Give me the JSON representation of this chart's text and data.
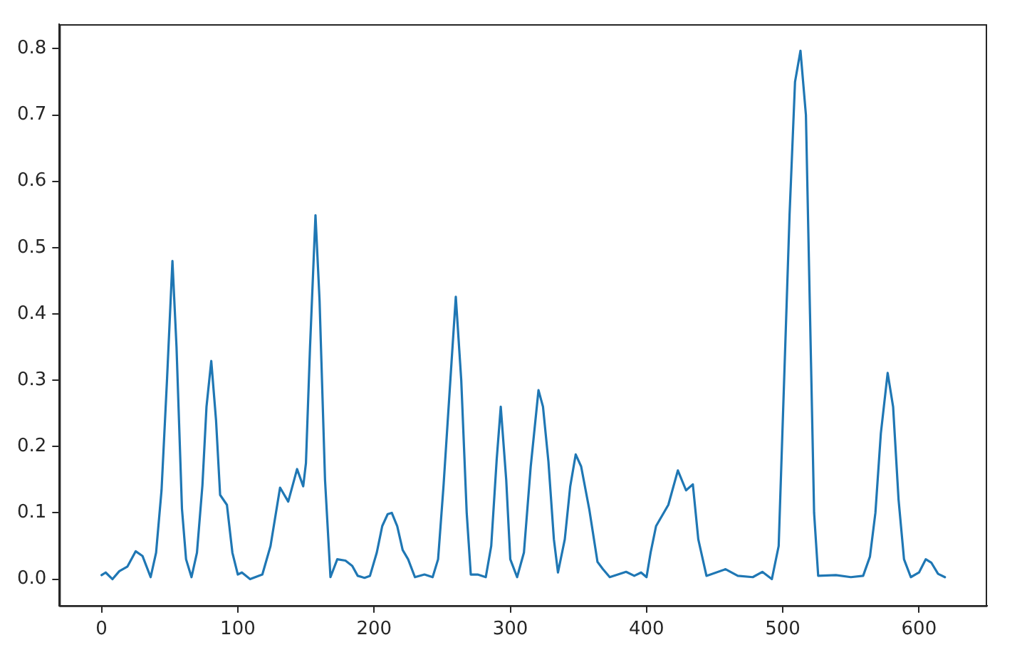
{
  "chart_data": {
    "type": "line",
    "xlim": [
      -31,
      650
    ],
    "ylim": [
      -0.04,
      0.837
    ],
    "xticks": [
      0,
      100,
      200,
      300,
      400,
      500,
      600
    ],
    "yticks": [
      {
        "value": 0,
        "label": "0.0"
      },
      0.1,
      0.2,
      0.3,
      0.4,
      0.5,
      0.6,
      0.7,
      0.8
    ],
    "grid": false,
    "legend": false,
    "marker": "none",
    "line_style": "solid",
    "series": [
      {
        "color": "#1f77b4",
        "x": [
          0,
          3,
          8,
          13,
          19,
          25,
          30,
          36,
          40,
          44,
          48,
          52,
          55,
          59,
          62,
          66,
          70,
          74,
          77,
          80.5,
          84,
          87,
          92,
          96,
          100,
          103,
          109,
          118,
          124,
          131,
          137,
          143.5,
          148,
          150,
          153,
          157,
          160,
          164,
          168,
          173,
          179,
          184,
          188,
          193,
          197,
          202,
          206,
          210,
          213,
          217,
          221,
          225,
          230,
          237,
          243,
          247,
          251,
          256,
          260,
          264,
          268,
          271,
          276,
          282,
          286,
          290,
          293,
          297,
          300,
          305,
          310,
          315,
          320.7,
          324,
          328,
          332,
          335,
          340,
          344,
          348,
          352,
          358,
          364,
          368,
          373,
          385,
          391,
          396,
          400,
          403,
          407,
          416,
          423,
          429,
          434,
          438,
          444,
          458,
          467,
          478,
          485,
          492,
          497,
          501,
          505,
          509,
          513,
          517,
          520,
          523,
          526,
          539,
          550,
          559,
          564,
          568,
          572,
          577,
          581,
          585,
          589,
          594,
          600,
          605,
          609,
          614,
          619
        ],
        "values": [
          0.006,
          0.01,
          0.0,
          0.012,
          0.019,
          0.042,
          0.035,
          0.003,
          0.04,
          0.134,
          0.3,
          0.48,
          0.35,
          0.106,
          0.03,
          0.003,
          0.04,
          0.141,
          0.26,
          0.329,
          0.24,
          0.127,
          0.112,
          0.04,
          0.007,
          0.01,
          0.0,
          0.007,
          0.05,
          0.138,
          0.117,
          0.166,
          0.14,
          0.175,
          0.35,
          0.549,
          0.42,
          0.15,
          0.003,
          0.03,
          0.028,
          0.02,
          0.005,
          0.002,
          0.005,
          0.04,
          0.08,
          0.098,
          0.1,
          0.08,
          0.044,
          0.03,
          0.003,
          0.007,
          0.003,
          0.03,
          0.141,
          0.3,
          0.426,
          0.3,
          0.1,
          0.007,
          0.007,
          0.003,
          0.05,
          0.18,
          0.26,
          0.15,
          0.03,
          0.003,
          0.04,
          0.17,
          0.285,
          0.26,
          0.177,
          0.06,
          0.01,
          0.06,
          0.14,
          0.188,
          0.17,
          0.105,
          0.026,
          0.015,
          0.003,
          0.011,
          0.005,
          0.01,
          0.003,
          0.04,
          0.08,
          0.112,
          0.164,
          0.134,
          0.143,
          0.06,
          0.005,
          0.015,
          0.005,
          0.003,
          0.011,
          0.0,
          0.05,
          0.3,
          0.55,
          0.75,
          0.797,
          0.7,
          0.4,
          0.1,
          0.005,
          0.006,
          0.003,
          0.005,
          0.034,
          0.1,
          0.22,
          0.311,
          0.26,
          0.12,
          0.03,
          0.003,
          0.01,
          0.03,
          0.025,
          0.008,
          0.003
        ]
      }
    ]
  }
}
